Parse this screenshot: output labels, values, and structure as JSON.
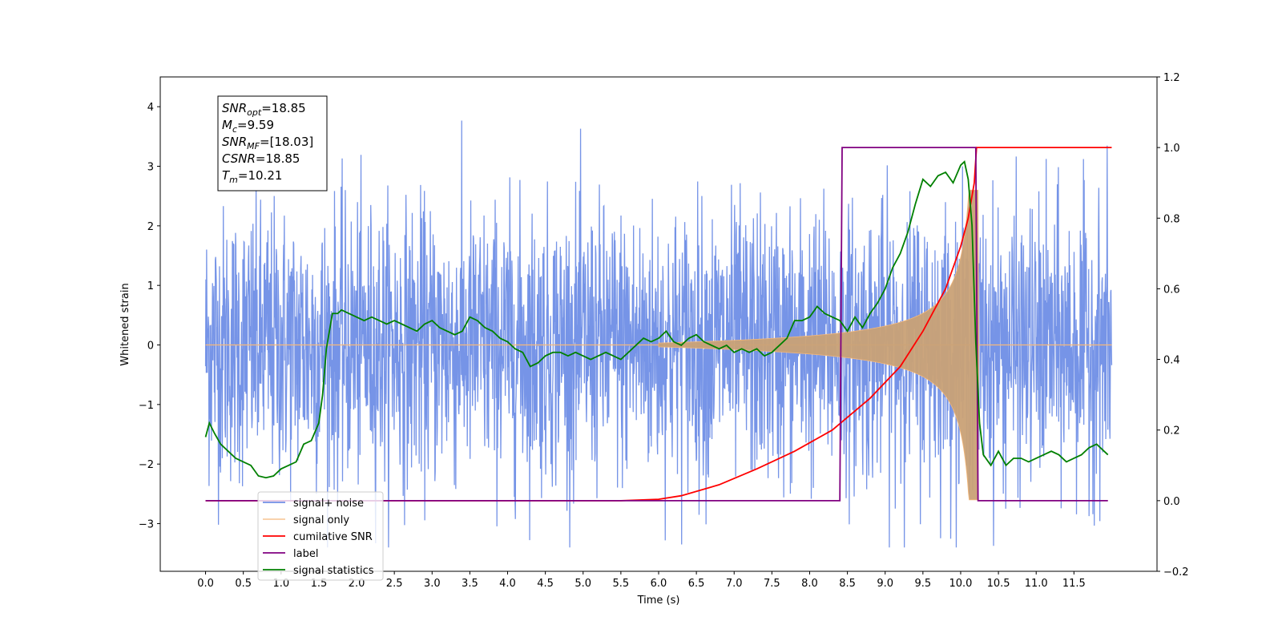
{
  "chart_data": {
    "type": "line",
    "xlabel": "Time (s)",
    "ylabel_left": "Whitened strain",
    "xlim": [
      -0.6,
      12.6
    ],
    "ylim_left": [
      -3.8,
      4.5
    ],
    "ylim_right": [
      -0.2,
      1.2
    ],
    "xticks": [
      0.0,
      0.5,
      1.0,
      1.5,
      2.0,
      2.5,
      3.0,
      3.5,
      4.0,
      4.5,
      5.0,
      5.5,
      6.0,
      6.5,
      7.0,
      7.5,
      8.0,
      8.5,
      9.0,
      9.5,
      10.0,
      10.5,
      11.0,
      11.5
    ],
    "xtick_labels": [
      "0.0",
      "0.5",
      "1.0",
      "1.5",
      "2.0",
      "2.5",
      "3.0",
      "3.5",
      "4.0",
      "4.5",
      "5.0",
      "5.5",
      "6.0",
      "6.5",
      "7.0",
      "7.5",
      "8.0",
      "8.5",
      "9.0",
      "9.5",
      "10.0",
      "10.5",
      "11.0",
      "11.5"
    ],
    "yticks_left": [
      -3,
      -2,
      -1,
      0,
      1,
      2,
      3,
      4
    ],
    "ytick_labels_left": [
      "−3",
      "−2",
      "−1",
      "0",
      "1",
      "2",
      "3",
      "4"
    ],
    "yticks_right": [
      -0.2,
      0.0,
      0.2,
      0.4,
      0.6,
      0.8,
      1.0,
      1.2
    ],
    "ytick_labels_right": [
      "−0.2",
      "0.0",
      "0.2",
      "0.4",
      "0.6",
      "0.8",
      "1.0",
      "1.2"
    ],
    "grid": false,
    "legend_position": "lower-left",
    "annotation": {
      "lines": [
        {
          "main": "SNR",
          "sub": "opt",
          "rest": "=18.85"
        },
        {
          "main": "M",
          "sub": "c",
          "rest": "=9.59"
        },
        {
          "main": "SNR",
          "sub": "MF",
          "rest": "=[18.03]"
        },
        {
          "main": "CSNR",
          "sub": "",
          "rest": "=18.85"
        },
        {
          "main": "T",
          "sub": "m",
          "rest": "=10.21"
        }
      ]
    },
    "series": [
      {
        "name": "signal+ noise",
        "axis": "left",
        "color": "#6f8ee6",
        "kind": "noise",
        "x_range": [
          0.0,
          12.0
        ],
        "std": 1.0,
        "y_min": -3.4,
        "y_max": 4.12
      },
      {
        "name": "signal only",
        "axis": "left",
        "color": "#f5b87a",
        "kind": "chirp",
        "x_range": [
          0.0,
          12.0
        ],
        "merger_time": 10.21,
        "peak_amplitude": 2.6
      },
      {
        "name": "cumilative SNR",
        "axis": "right",
        "color": "#ff0000",
        "x": [
          0.0,
          5.5,
          6.0,
          6.3,
          6.8,
          7.3,
          7.8,
          8.3,
          8.8,
          9.2,
          9.5,
          9.8,
          10.0,
          10.1,
          10.18,
          10.21,
          12.0
        ],
        "y": [
          0.0,
          0.0,
          0.004,
          0.014,
          0.045,
          0.09,
          0.14,
          0.2,
          0.29,
          0.38,
          0.48,
          0.6,
          0.72,
          0.8,
          0.9,
          1.0,
          1.0
        ]
      },
      {
        "name": "label",
        "axis": "right",
        "color": "#800080",
        "x": [
          0.0,
          8.4,
          8.43,
          10.2,
          10.23,
          11.95
        ],
        "y": [
          0.0,
          0.0,
          1.0,
          1.0,
          0.0,
          0.0
        ]
      },
      {
        "name": "signal statistics",
        "axis": "right",
        "color": "#008000",
        "x": [
          0.0,
          0.05,
          0.12,
          0.2,
          0.3,
          0.4,
          0.5,
          0.6,
          0.7,
          0.8,
          0.9,
          1.0,
          1.1,
          1.2,
          1.3,
          1.4,
          1.5,
          1.55,
          1.6,
          1.68,
          1.75,
          1.8,
          1.9,
          2.0,
          2.1,
          2.2,
          2.3,
          2.4,
          2.5,
          2.6,
          2.7,
          2.8,
          2.9,
          3.0,
          3.1,
          3.2,
          3.3,
          3.4,
          3.5,
          3.6,
          3.7,
          3.8,
          3.9,
          4.0,
          4.1,
          4.2,
          4.3,
          4.4,
          4.5,
          4.6,
          4.7,
          4.8,
          4.9,
          5.0,
          5.1,
          5.2,
          5.3,
          5.4,
          5.5,
          5.6,
          5.7,
          5.8,
          5.9,
          6.0,
          6.1,
          6.2,
          6.3,
          6.4,
          6.5,
          6.6,
          6.7,
          6.8,
          6.9,
          7.0,
          7.1,
          7.2,
          7.3,
          7.4,
          7.5,
          7.6,
          7.7,
          7.8,
          7.9,
          8.0,
          8.1,
          8.2,
          8.3,
          8.4,
          8.5,
          8.6,
          8.7,
          8.8,
          8.9,
          9.0,
          9.1,
          9.2,
          9.3,
          9.4,
          9.5,
          9.6,
          9.7,
          9.8,
          9.9,
          10.0,
          10.05,
          10.1,
          10.15,
          10.2,
          10.25,
          10.3,
          10.4,
          10.5,
          10.6,
          10.7,
          10.8,
          10.9,
          11.0,
          11.1,
          11.2,
          11.3,
          11.4,
          11.5,
          11.6,
          11.7,
          11.8,
          11.9,
          11.95
        ],
        "y": [
          0.18,
          0.22,
          0.19,
          0.16,
          0.14,
          0.12,
          0.11,
          0.1,
          0.07,
          0.065,
          0.07,
          0.09,
          0.1,
          0.11,
          0.16,
          0.17,
          0.22,
          0.3,
          0.43,
          0.53,
          0.53,
          0.54,
          0.53,
          0.52,
          0.51,
          0.52,
          0.51,
          0.5,
          0.51,
          0.5,
          0.49,
          0.48,
          0.5,
          0.51,
          0.49,
          0.48,
          0.47,
          0.48,
          0.52,
          0.51,
          0.49,
          0.48,
          0.46,
          0.45,
          0.43,
          0.42,
          0.38,
          0.39,
          0.41,
          0.42,
          0.42,
          0.41,
          0.42,
          0.41,
          0.4,
          0.41,
          0.42,
          0.41,
          0.4,
          0.42,
          0.44,
          0.46,
          0.45,
          0.46,
          0.48,
          0.45,
          0.44,
          0.46,
          0.47,
          0.45,
          0.44,
          0.43,
          0.44,
          0.42,
          0.43,
          0.42,
          0.43,
          0.41,
          0.42,
          0.44,
          0.46,
          0.51,
          0.51,
          0.52,
          0.55,
          0.53,
          0.52,
          0.51,
          0.48,
          0.52,
          0.49,
          0.53,
          0.56,
          0.6,
          0.66,
          0.7,
          0.76,
          0.84,
          0.91,
          0.89,
          0.92,
          0.93,
          0.9,
          0.95,
          0.96,
          0.91,
          0.78,
          0.45,
          0.22,
          0.13,
          0.1,
          0.14,
          0.1,
          0.12,
          0.12,
          0.11,
          0.12,
          0.13,
          0.14,
          0.13,
          0.11,
          0.12,
          0.13,
          0.15,
          0.16,
          0.14,
          0.13
        ]
      }
    ]
  }
}
